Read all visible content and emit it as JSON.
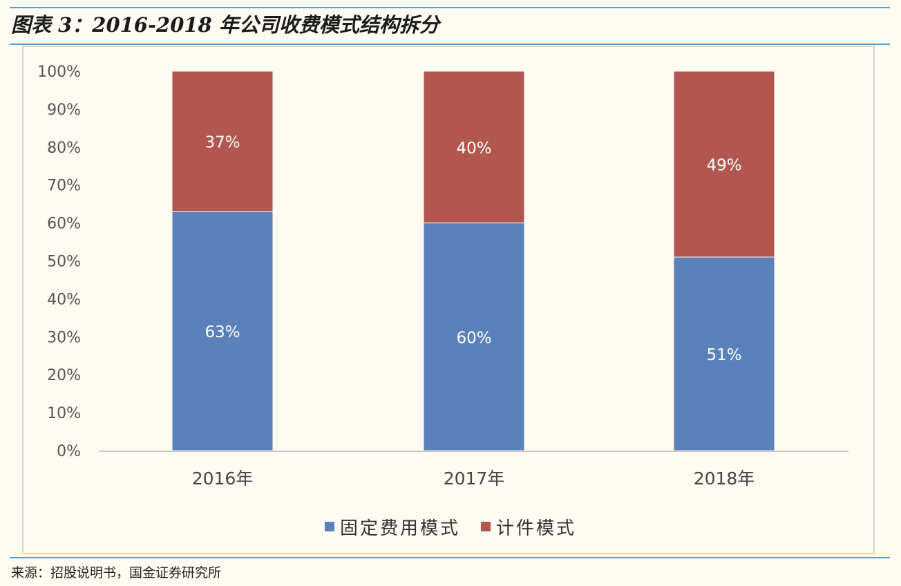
{
  "header": {
    "title": "图表 3：2016-2018 年公司收费模式结构拆分"
  },
  "footer": {
    "source": "来源：招股说明书，国金证券研究所"
  },
  "chart_data": {
    "type": "bar",
    "stacked": true,
    "categories": [
      "2016年",
      "2017年",
      "2018年"
    ],
    "series": [
      {
        "name": "固定费用模式",
        "values": [
          63,
          60,
          51
        ],
        "labels": [
          "63%",
          "60%",
          "51%"
        ],
        "color": "#5b81bb"
      },
      {
        "name": "计件模式",
        "values": [
          37,
          40,
          49
        ],
        "labels": [
          "37%",
          "40%",
          "49%"
        ],
        "color": "#b1574f"
      }
    ],
    "ylim": [
      0,
      100
    ],
    "yticks": [
      "0%",
      "10%",
      "20%",
      "30%",
      "40%",
      "50%",
      "60%",
      "70%",
      "80%",
      "90%",
      "100%"
    ],
    "grid": false,
    "legend": "bottom"
  }
}
